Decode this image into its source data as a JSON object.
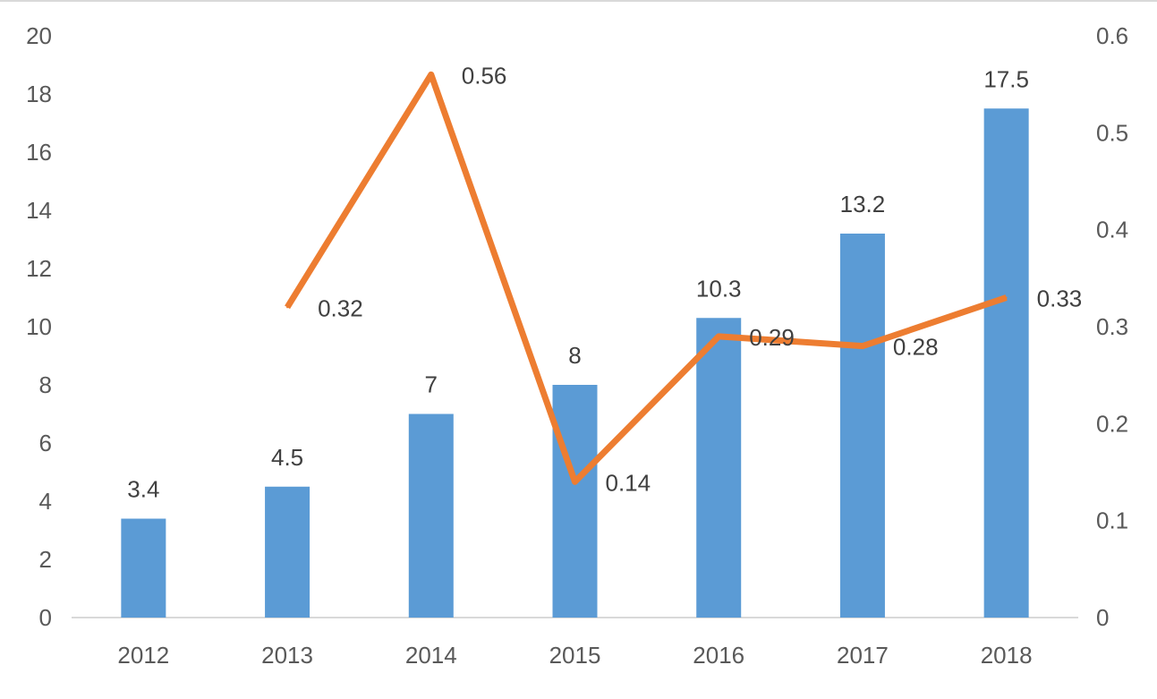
{
  "chart_data": {
    "type": "bar",
    "title": "",
    "categories": [
      "2012",
      "2013",
      "2014",
      "2015",
      "2016",
      "2017",
      "2018"
    ],
    "series": [
      {
        "name": "bar-series",
        "type": "bar",
        "axis": "left",
        "color": "#5B9BD5",
        "values": [
          3.4,
          4.5,
          7,
          8,
          10.3,
          13.2,
          17.5
        ],
        "labels": [
          "3.4",
          "4.5",
          "7",
          "8",
          "10.3",
          "13.2",
          "17.5"
        ]
      },
      {
        "name": "line-series",
        "type": "line",
        "axis": "right",
        "color": "#ED7D31",
        "values": [
          null,
          0.32,
          0.56,
          0.14,
          0.29,
          0.28,
          0.33
        ],
        "labels": [
          null,
          "0.32",
          "0.56",
          "0.14",
          "0.29",
          "0.28",
          "0.33"
        ]
      }
    ],
    "left_axis": {
      "range": [
        0,
        20
      ],
      "ticks": [
        "0",
        "2",
        "4",
        "6",
        "8",
        "10",
        "12",
        "14",
        "16",
        "18",
        "20"
      ]
    },
    "right_axis": {
      "range": [
        0,
        0.6
      ],
      "ticks": [
        "0",
        "0.1",
        "0.2",
        "0.3",
        "0.4",
        "0.5",
        "0.6"
      ]
    },
    "grid": false,
    "legend": "none"
  }
}
